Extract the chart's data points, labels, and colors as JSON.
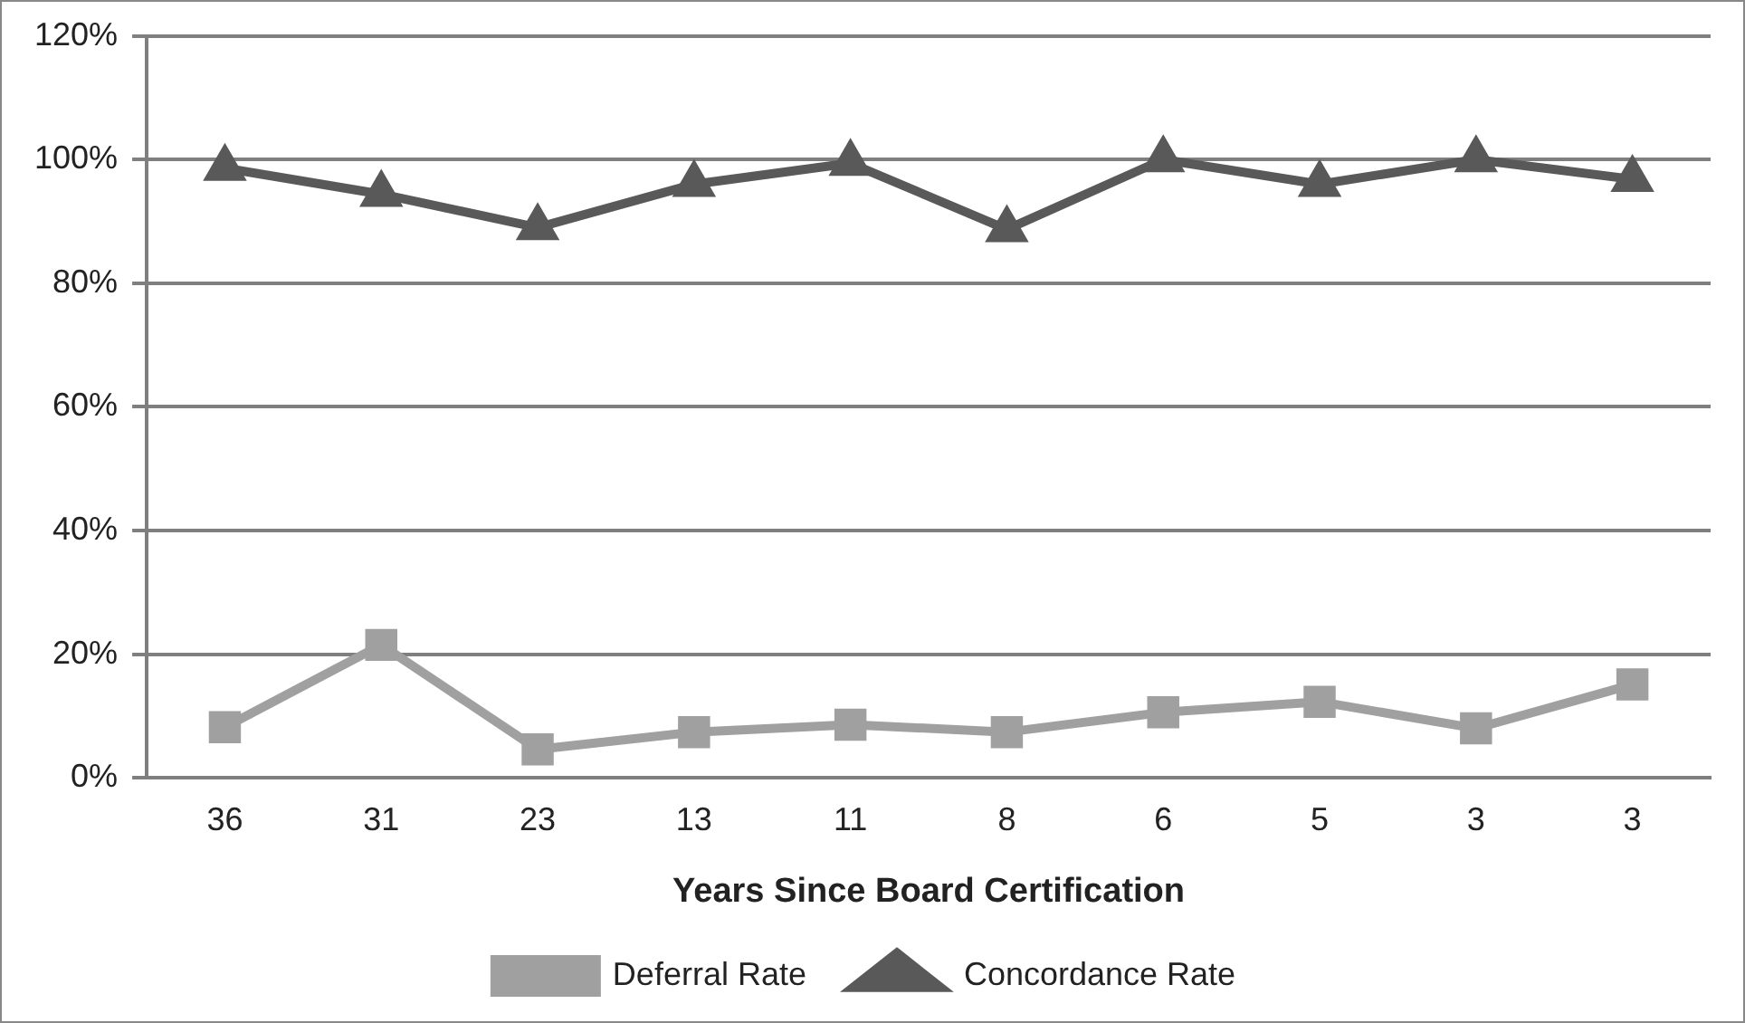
{
  "chart_data": {
    "type": "line",
    "xlabel": "Years Since Board Certification",
    "categories": [
      "36",
      "31",
      "23",
      "13",
      "11",
      "8",
      "6",
      "5",
      "3",
      "3"
    ],
    "series": [
      {
        "name": "Deferral Rate",
        "color": "#a0a0a0",
        "marker": "square",
        "values": [
          8.2,
          21.5,
          4.6,
          7.4,
          8.6,
          7.4,
          10.6,
          12.3,
          8,
          15.1
        ]
      },
      {
        "name": "Concordance Rate",
        "color": "#595959",
        "marker": "triangle",
        "values": [
          98.6,
          94.4,
          89,
          96,
          99.4,
          88.7,
          100,
          96,
          100,
          96.8
        ]
      }
    ],
    "ylim": [
      0,
      120
    ],
    "yticks": [
      {
        "value": 0,
        "label": "0%"
      },
      {
        "value": 20,
        "label": "20%"
      },
      {
        "value": 40,
        "label": "40%"
      },
      {
        "value": 60,
        "label": "60%"
      },
      {
        "value": 80,
        "label": "80%"
      },
      {
        "value": 100,
        "label": "100%"
      },
      {
        "value": 120,
        "label": "120%"
      }
    ],
    "grid": "y",
    "legend": "bottom",
    "line_style": "solid"
  }
}
